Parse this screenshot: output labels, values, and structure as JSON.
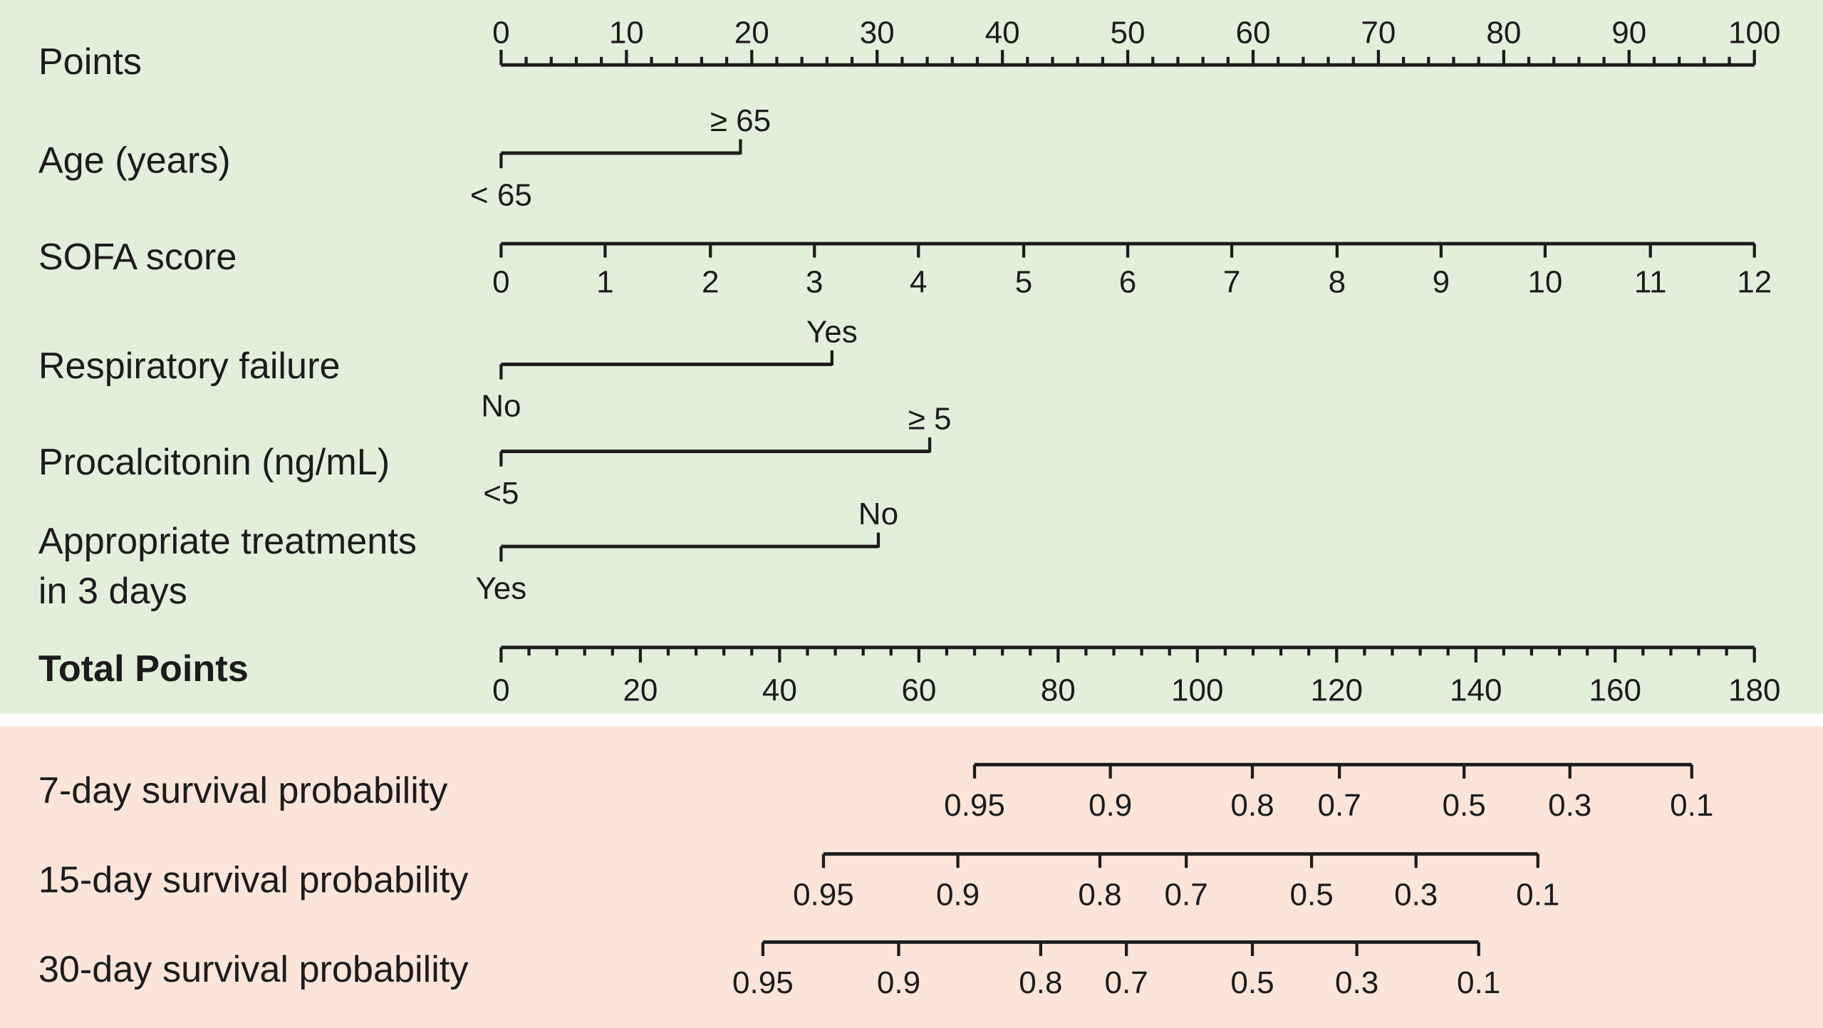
{
  "colors": {
    "predictor_panel_bg": "#e2efda",
    "survival_panel_bg": "#fbe4d8",
    "ink": "#1c1c1c"
  },
  "chart_data": {
    "type": "table",
    "points_axis": {
      "label": "Points",
      "range": [
        0,
        100
      ],
      "ticks": [
        0,
        10,
        20,
        30,
        40,
        50,
        60,
        70,
        80,
        90,
        100
      ],
      "minor_step": 2
    },
    "predictors": [
      {
        "label": [
          "Age (years)"
        ],
        "levels": [
          {
            "label": "< 65",
            "points": 0
          },
          {
            "label": "≥ 65",
            "points": 19.1
          }
        ]
      },
      {
        "label": [
          "SOFA score"
        ],
        "levels": [
          {
            "label": "0",
            "points": 0
          },
          {
            "label": "1",
            "points": 8.3
          },
          {
            "label": "2",
            "points": 16.7
          },
          {
            "label": "3",
            "points": 25
          },
          {
            "label": "4",
            "points": 33.3
          },
          {
            "label": "5",
            "points": 41.7
          },
          {
            "label": "6",
            "points": 50
          },
          {
            "label": "7",
            "points": 58.3
          },
          {
            "label": "8",
            "points": 66.7
          },
          {
            "label": "9",
            "points": 75
          },
          {
            "label": "10",
            "points": 83.3
          },
          {
            "label": "11",
            "points": 91.7
          },
          {
            "label": "12",
            "points": 100
          }
        ]
      },
      {
        "label": [
          "Respiratory failure"
        ],
        "levels": [
          {
            "label": "No",
            "points": 0
          },
          {
            "label": "Yes",
            "points": 26.4
          }
        ]
      },
      {
        "label": [
          "Procalcitonin (ng/mL)"
        ],
        "levels": [
          {
            "label": "<5",
            "points": 0
          },
          {
            "label": "≥ 5",
            "points": 34.2
          }
        ]
      },
      {
        "label": [
          "Appropriate treatments",
          "in 3 days"
        ],
        "levels": [
          {
            "label": "Yes",
            "points": 0
          },
          {
            "label": "No",
            "points": 30.1
          }
        ]
      }
    ],
    "total_points_axis": {
      "label": "Total Points",
      "range": [
        0,
        180
      ],
      "ticks": [
        0,
        20,
        40,
        60,
        80,
        100,
        120,
        140,
        160,
        180
      ],
      "minor_step": 4
    },
    "survival_scales": [
      {
        "label": "7-day survival probability",
        "ticks": [
          {
            "label": "0.95",
            "total_points": 68.0
          },
          {
            "label": "0.9",
            "total_points": 87.5
          },
          {
            "label": "0.8",
            "total_points": 107.9
          },
          {
            "label": "0.7",
            "total_points": 120.4
          },
          {
            "label": "0.5",
            "total_points": 138.3
          },
          {
            "label": "0.3",
            "total_points": 153.5
          },
          {
            "label": "0.1",
            "total_points": 171.0
          }
        ]
      },
      {
        "label": "15-day survival probability",
        "ticks": [
          {
            "label": "0.95",
            "total_points": 46.3
          },
          {
            "label": "0.9",
            "total_points": 65.6
          },
          {
            "label": "0.8",
            "total_points": 86.0
          },
          {
            "label": "0.7",
            "total_points": 98.4
          },
          {
            "label": "0.5",
            "total_points": 116.4
          },
          {
            "label": "0.3",
            "total_points": 131.4
          },
          {
            "label": "0.1",
            "total_points": 148.9
          }
        ]
      },
      {
        "label": "30-day survival probability",
        "ticks": [
          {
            "label": "0.95",
            "total_points": 37.6
          },
          {
            "label": "0.9",
            "total_points": 57.1
          },
          {
            "label": "0.8",
            "total_points": 77.5
          },
          {
            "label": "0.7",
            "total_points": 89.8
          },
          {
            "label": "0.5",
            "total_points": 107.9
          },
          {
            "label": "0.3",
            "total_points": 122.9
          },
          {
            "label": "0.1",
            "total_points": 140.4
          }
        ]
      }
    ]
  }
}
